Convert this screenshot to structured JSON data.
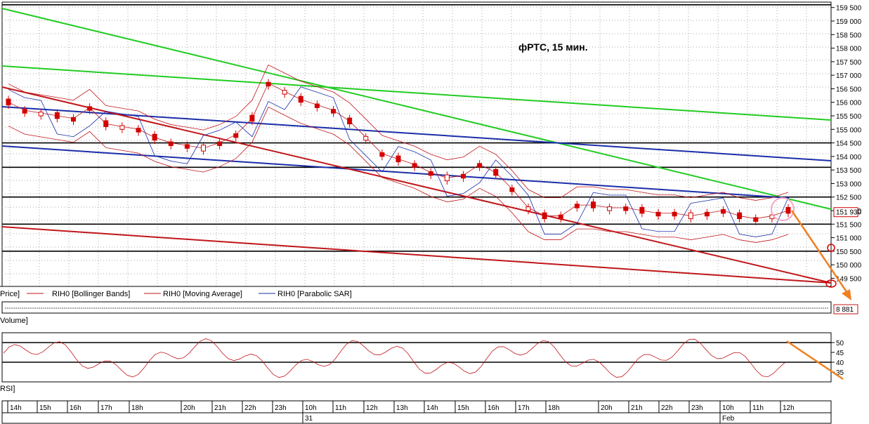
{
  "chart_data": {
    "type": "candlestick",
    "title": "фРТС,  15 мин.",
    "price_axis": {
      "ylim": [
        149200,
        159700
      ],
      "ticks": [
        159500,
        159000,
        158500,
        158000,
        157500,
        157000,
        156500,
        156000,
        155500,
        155000,
        154500,
        154000,
        153500,
        153000,
        152500,
        152000,
        151500,
        151000,
        150500,
        150000,
        149500
      ],
      "tick_labels": [
        "159 500",
        "159 000",
        "158 500",
        "158 000",
        "157 500",
        "157 000",
        "156 500",
        "156 000",
        "155 500",
        "155 000",
        "154 500",
        "154 000",
        "153 500",
        "153 000",
        "152 500",
        "152 000",
        "151 500",
        "151 000",
        "150 500",
        "150 000",
        "149 500"
      ],
      "last_price": 151930,
      "last_price_label": "151 930"
    },
    "legend": {
      "price": "Price]",
      "bollinger": "RIH0 [Bollinger Bands]",
      "ma": "RIH0 [Moving Average]",
      "sar": "RIH0 [Parabolic SAR]"
    },
    "volume_panel": {
      "label": "Volume]",
      "last_value_label": "8 881"
    },
    "rsi_panel": {
      "label": "RSI]",
      "ylim": [
        30,
        55
      ],
      "ticks": [
        50,
        45,
        40,
        35
      ],
      "levels": [
        50,
        40
      ]
    },
    "time_axis": {
      "hour_labels": [
        "14h",
        "15h",
        "16h",
        "17h",
        "18h",
        "20h",
        "21h",
        "22h",
        "23h",
        "10h",
        "11h",
        "12h",
        "13h",
        "14h",
        "15h",
        "16h",
        "17h",
        "18h",
        "20h",
        "21h",
        "22h",
        "23h",
        "10h",
        "11h",
        "12h"
      ],
      "day_labels": [
        "31",
        "Feb"
      ]
    },
    "horizontal_levels": [
      159600,
      154500,
      153600,
      152500,
      151500,
      150500
    ],
    "colors": {
      "candle": "#d40000",
      "support_red": "#c0161a",
      "trend_green": "#22cc22",
      "trend_blue": "#1a2ea8",
      "bollinger": "#c0161a",
      "sar": "#1a2ea8",
      "forecast": "#f08020"
    }
  }
}
